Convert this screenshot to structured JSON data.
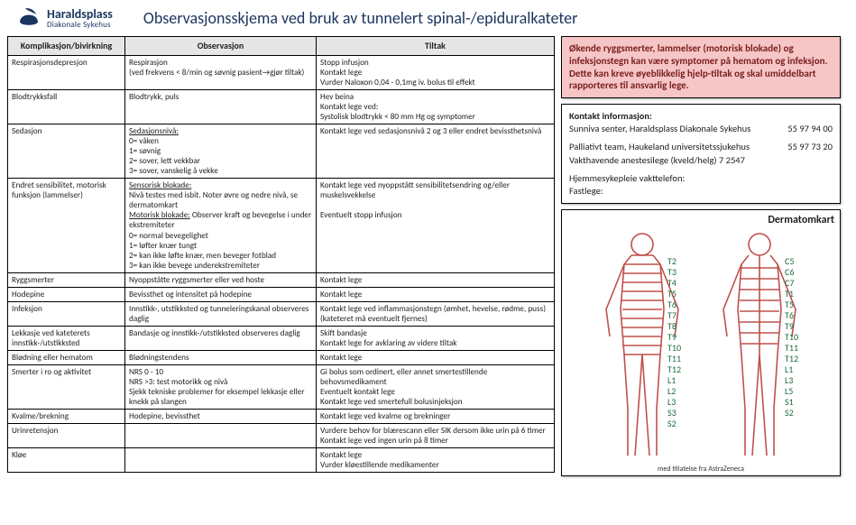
{
  "logo": {
    "line1": "Haraldsplass",
    "line2": "Diakonale Sykehus"
  },
  "title": "Observasjonsskjema ved bruk av tunnelert spinal-/epiduralkateter",
  "table": {
    "headers": [
      "Komplikasjon/bivirkning",
      "Observasjon",
      "Tiltak"
    ],
    "rows": [
      {
        "comp": "Respirasjonsdepresjon",
        "obs_html": "Respirasjon<br>(ved frekvens &lt; 8/min og søvnig pasient<span class='arrow'></span>gjør tiltak)",
        "til_html": "Stopp infusjon<br>Kontakt lege<br>Vurder Naloxon 0,04 - 0,1mg iv. bolus til effekt"
      },
      {
        "comp": "Blodtrykksfall",
        "obs_html": "Blodtrykk, puls",
        "til_html": "Hev beina<br>Kontakt lege ved:<br>Systolisk blodtrykk &lt; 80 mm Hg og symptomer"
      },
      {
        "comp": "Sedasjon",
        "obs_html": "<span class='u'>Sedasjonsnivå:</span><br>0= våken<br>1= søvnig<br>2= sover, lett vekkbar<br>3= sover, vanskelig å vekke",
        "til_html": "Kontakt lege ved sedasjonsnivå 2 og 3 eller endret bevissthetsnivå"
      },
      {
        "comp": "Endret sensibilitet, motorisk funksjon (lammelser)",
        "obs_html": "<span class='u'>Sensorisk blokade:</span><br>Nivå testes med isbit. Noter øvre og nedre nivå, se dermatomkart<br><span class='u'>Motorisk blokade:</span> Observer kraft og bevegelse i under ekstremiteter<br>0= normal bevegelighet<br>1= løfter knær tungt<br>2= kan ikke løfte knær, men beveger fotblad<br>3= kan ikke bevege underekstremiteter",
        "til_html": "Kontakt lege ved nyoppstått sensibilitetsendring og/eller muskelsvekkelse<br><br>Eventuelt stopp infusjon"
      },
      {
        "comp": "Ryggsmerter",
        "obs_html": "Nyoppståtte ryggsmerter eller ved hoste",
        "til_html": "Kontakt lege"
      },
      {
        "comp": "Hodepine",
        "obs_html": "Bevissthet og intensitet på hodepine",
        "til_html": "Kontakt lege"
      },
      {
        "comp": "Infeksjon",
        "obs_html": "Innstikk-, utstikksted og tunneleringskanal observeres daglig",
        "til_html": "Kontakt lege ved inflammasjonstegn (ømhet, hevelse, rødme, puss)<br>(kateteret må eventuelt fjernes)"
      },
      {
        "comp": "Lekkasje ved kateterets innstikk-/utstikksted",
        "obs_html": "Bandasje og innstikk-/utstikksted observeres daglig",
        "til_html": "Skift bandasje<br>Kontakt lege for avklaring av videre tiltak"
      },
      {
        "comp": "Blødning eller hematom",
        "obs_html": "Blødningstendens",
        "til_html": "Kontakt lege"
      },
      {
        "comp": "Smerter i ro og aktivitet",
        "obs_html": "NRS 0 - 10<br>NRS &gt;3: test motorikk og nivå<br>Sjekk tekniske problemer for eksempel lekkasje eller knekk på slangen",
        "til_html": "Gi bolus som ordinert, eller annet smertestillende behovsmedikament<br>Eventuelt kontakt lege<br>Kontakt lege ved smertefull bolusinjeksjon"
      },
      {
        "comp": "Kvalme/brekning",
        "obs_html": "Hodepine, bevissthet",
        "til_html": "Kontakt lege ved kvalme og brekninger"
      },
      {
        "comp": "Urinretensjon",
        "obs_html": "",
        "til_html": "Vurdere behov for blærescann eller SIK dersom ikke urin på 6 timer<br>Kontakt lege ved ingen urin på 8 timer"
      },
      {
        "comp": "Kløe",
        "obs_html": "",
        "til_html": "Kontakt lege<br>Vurder kløestillende medikamenter"
      }
    ]
  },
  "warning": "Økende ryggsmerter, lammelser (motorisk blokade) og infeksjonstegn kan være symptomer på hematom og infeksjon. Dette kan kreve øyeblikkelig hjelp-tiltak og skal umiddelbart rapporteres til ansvarlig lege.",
  "contact": {
    "heading": "Kontakt informasjon:",
    "lines": [
      {
        "label": "Sunniva senter, Haraldsplass Diakonale Sykehus",
        "phone": "55 97 94 00"
      },
      {
        "label": "Palliativt team, Haukeland universitetssjukehus",
        "phone": "55 97 73 20"
      },
      {
        "label": "Vakthavende anestesilege (kveld/helg) 7 2547",
        "phone": ""
      },
      {
        "label": "Hjemmesykepleie vakttelefon:",
        "phone": ""
      },
      {
        "label": "Fastlege:",
        "phone": ""
      }
    ]
  },
  "dermatome": {
    "title": "Dermatomkart",
    "credit": "med tillatelse fra AstraZeneca",
    "labels_front": [
      "T2",
      "T3",
      "T4",
      "T5",
      "T6",
      "T7",
      "T8",
      "T9",
      "T10",
      "T11",
      "T12",
      "L1",
      "L2",
      "L3",
      "S3",
      "S2"
    ],
    "labels_back": [
      "C5",
      "C6",
      "C7",
      "T1",
      "T5",
      "T6",
      "T9",
      "T10",
      "T11",
      "T12",
      "L1",
      "L3",
      "L5",
      "S1",
      "S2"
    ]
  },
  "colors": {
    "logo": "#1a355e",
    "warning_bg": "#f6c6c6",
    "warning_text": "#7a1d1d",
    "table_header_bg": "#e6e6e6",
    "body_stroke": "#c0504d",
    "label_green": "#1a6b3a"
  }
}
